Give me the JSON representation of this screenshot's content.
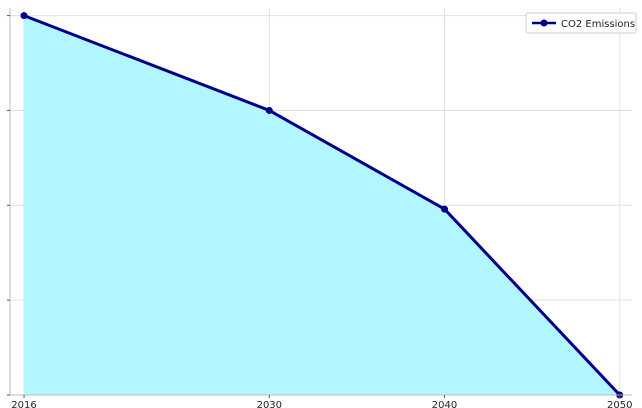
{
  "chart_data": {
    "type": "area",
    "title": "",
    "xlabel": "",
    "ylabel": "",
    "x": [
      2016,
      2030,
      2040,
      2050
    ],
    "x_tick_labels": [
      "2016",
      "2030",
      "2040",
      "2050"
    ],
    "series": [
      {
        "name": "CO2 Emissions",
        "values": [
          100,
          75,
          49,
          0
        ]
      }
    ],
    "xlim": [
      2015.2,
      2050.7
    ],
    "ylim": [
      0,
      102
    ],
    "y_ticks": [
      0,
      25,
      50,
      75,
      100
    ],
    "y_tick_labels_visible": false,
    "grid": true,
    "legend": "top-right",
    "colors": {
      "line": "#00008b",
      "fill": "#b2f7ff",
      "grid": "#e0e0e0",
      "axis": "#bbbbbb"
    }
  }
}
